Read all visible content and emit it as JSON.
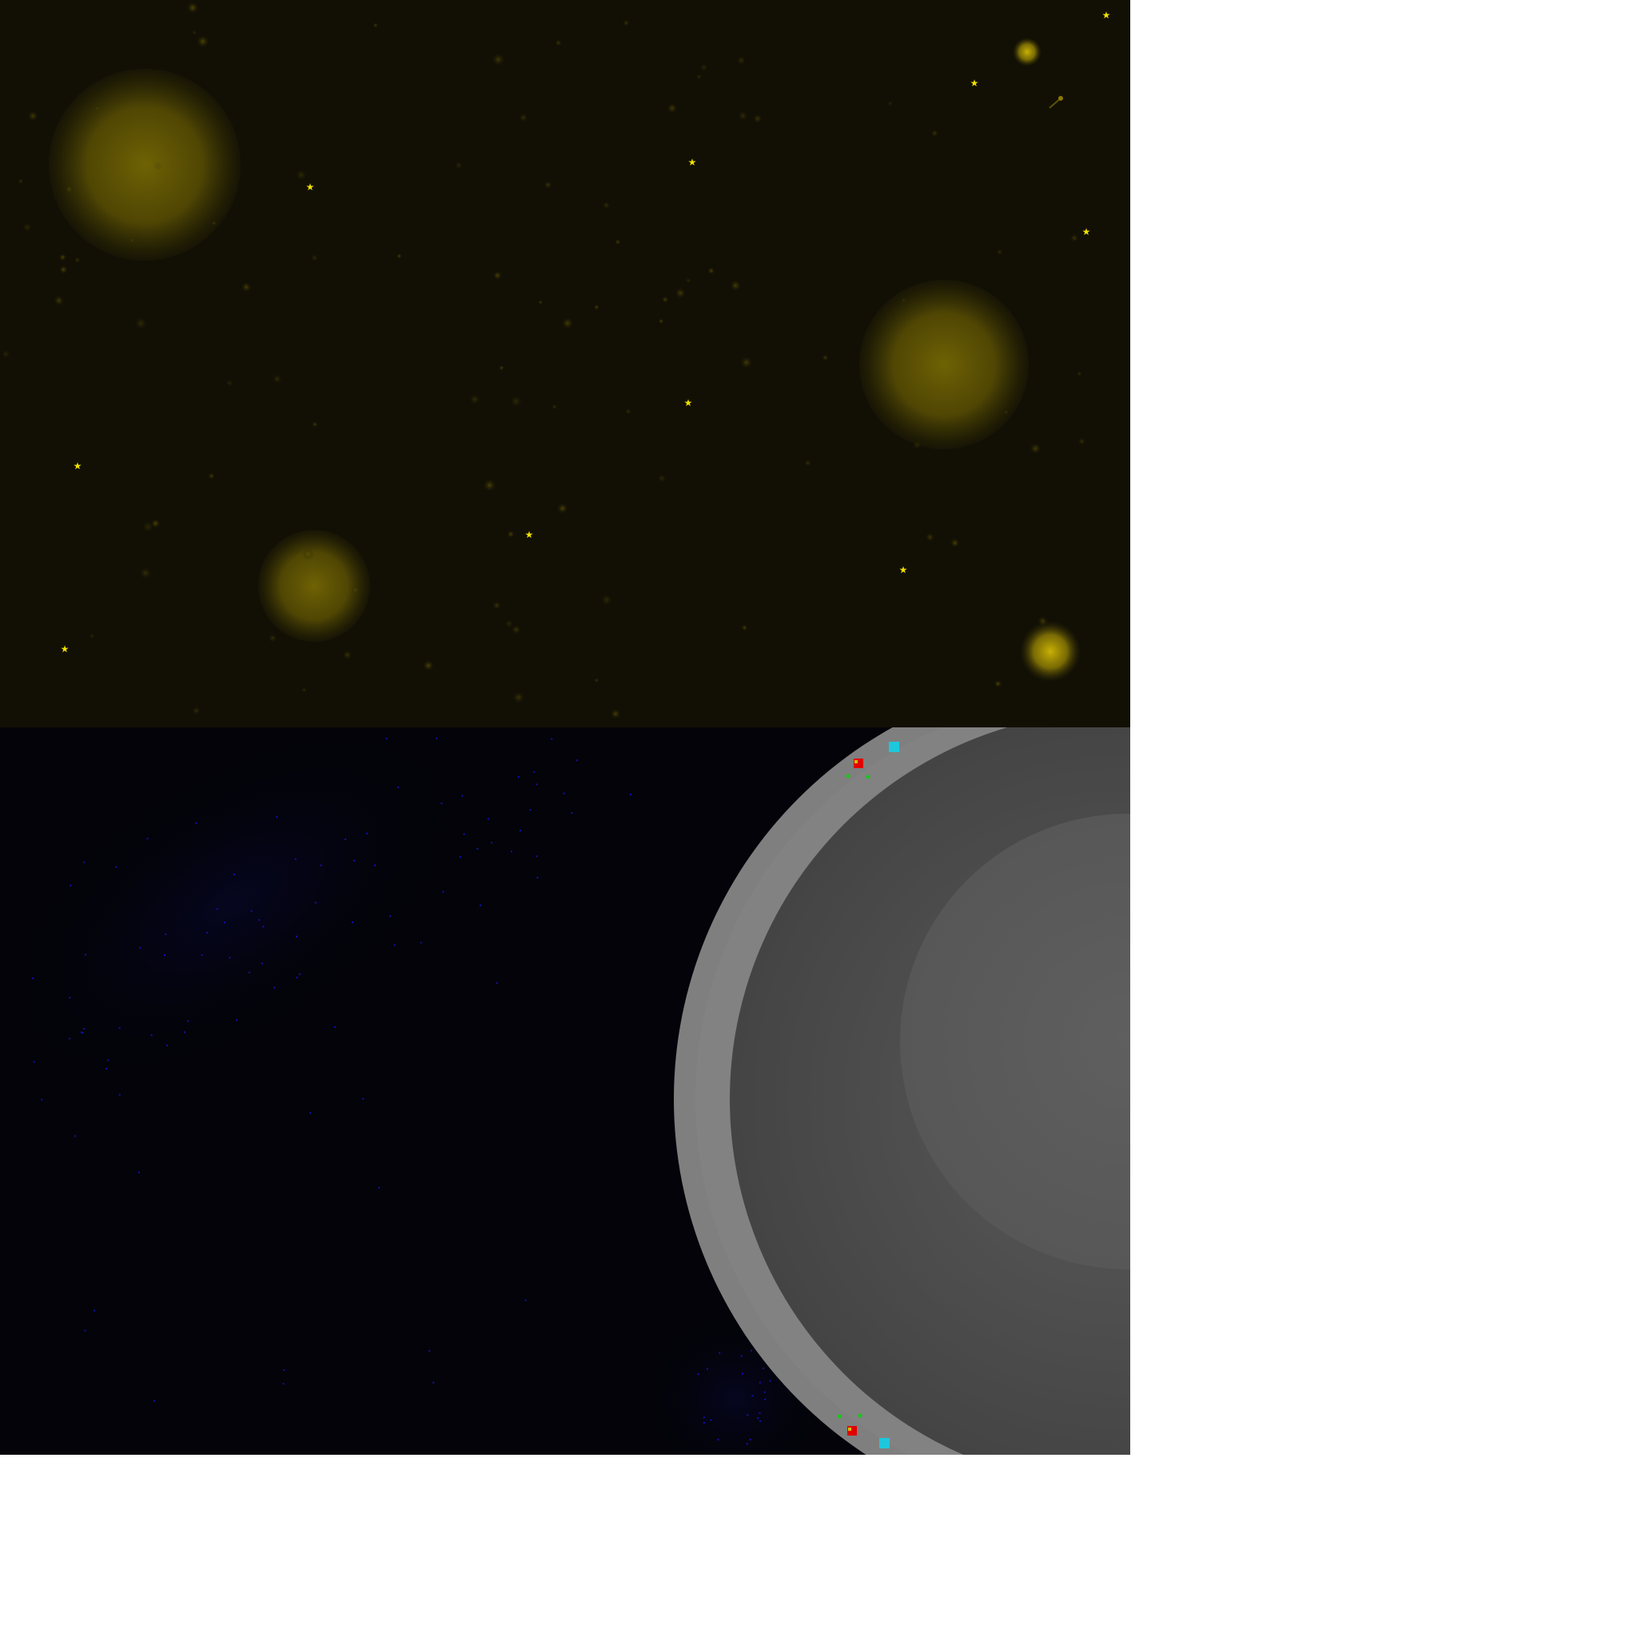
{
  "scene": {
    "top_panel": {
      "name": "yellow-star-field",
      "background": "#121005",
      "glow_color": "#6f6204",
      "star_color": "#f1e100"
    },
    "bottom_panel": {
      "name": "planet-surface-view",
      "background": "#030309",
      "star_color": "#1010b4",
      "planet_outer": "#7f7f7f",
      "planet_inner": "#444444",
      "planet_core": "#555555",
      "marker_colors": {
        "red_unit": "#e10000",
        "cyan_unit": "#1ec7dc",
        "green_dot": "#15c915"
      }
    }
  }
}
